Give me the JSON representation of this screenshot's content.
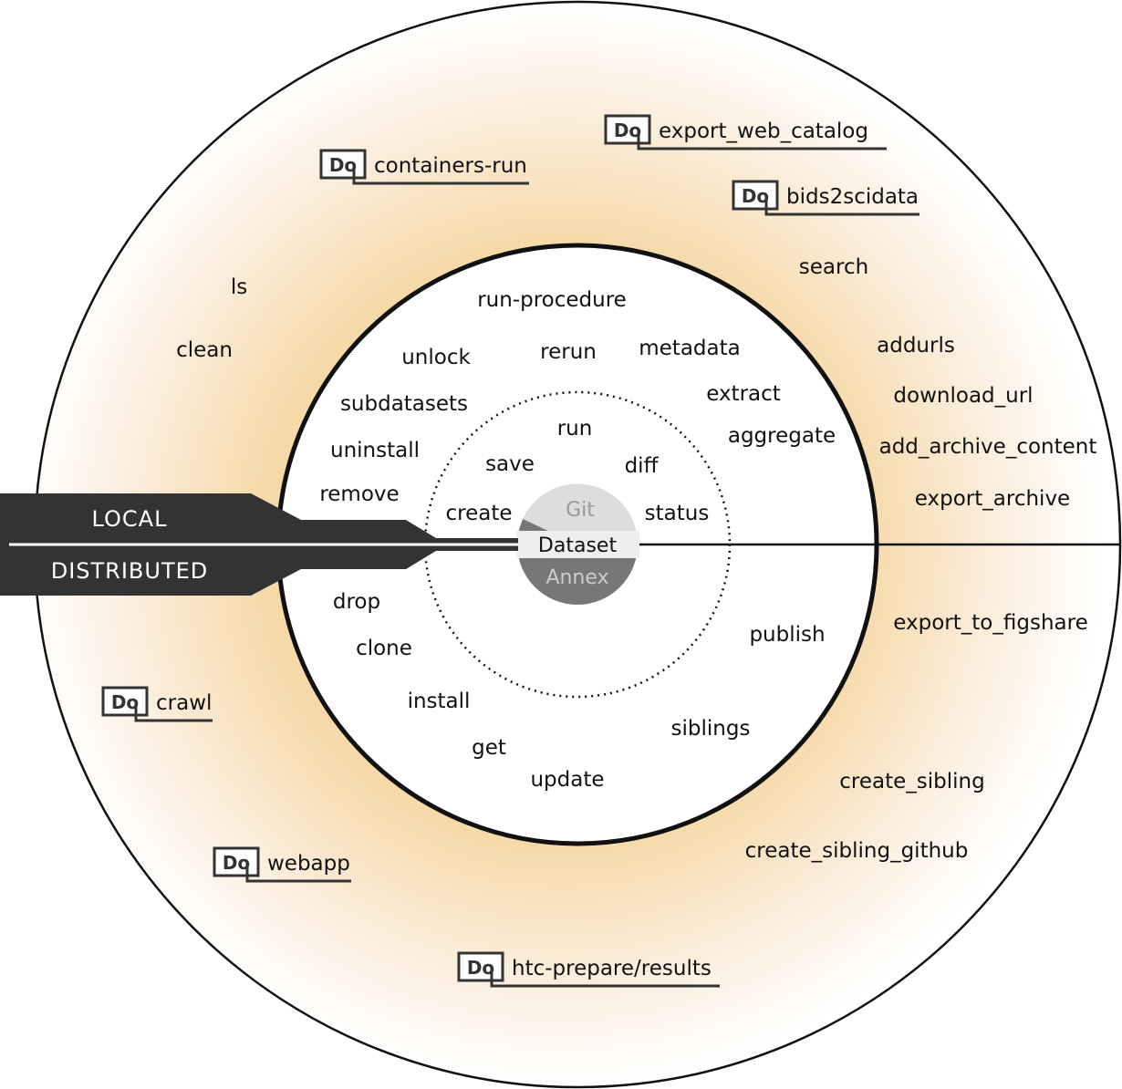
{
  "band": {
    "top_label": "LOCAL",
    "bottom_label": "DISTRIBUTED"
  },
  "core": {
    "git": "Git",
    "dataset": "Dataset",
    "annex": "Annex"
  },
  "inner_commands": [
    "run",
    "save",
    "diff",
    "create",
    "status"
  ],
  "middle_commands": [
    "run-procedure",
    "unlock",
    "rerun",
    "metadata",
    "extract",
    "subdatasets",
    "aggregate",
    "uninstall",
    "remove",
    "drop",
    "clone",
    "install",
    "get",
    "update",
    "siblings",
    "publish"
  ],
  "outer_commands": [
    "ls",
    "clean",
    "search",
    "addurls",
    "download_url",
    "add_archive_content",
    "export_archive",
    "export_to_figshare",
    "create_sibling",
    "create_sibling_github"
  ],
  "extensions": [
    "export_web_catalog",
    "containers-run",
    "bids2scidata",
    "crawl",
    "webapp",
    "htc-prepare/results"
  ],
  "extension_logo_text": "Do",
  "colors": {
    "ring_glow": "#f5d9a8",
    "band": "#333333",
    "git": "#dddddd",
    "annex": "#777777",
    "dataset_dark": "#666666"
  }
}
